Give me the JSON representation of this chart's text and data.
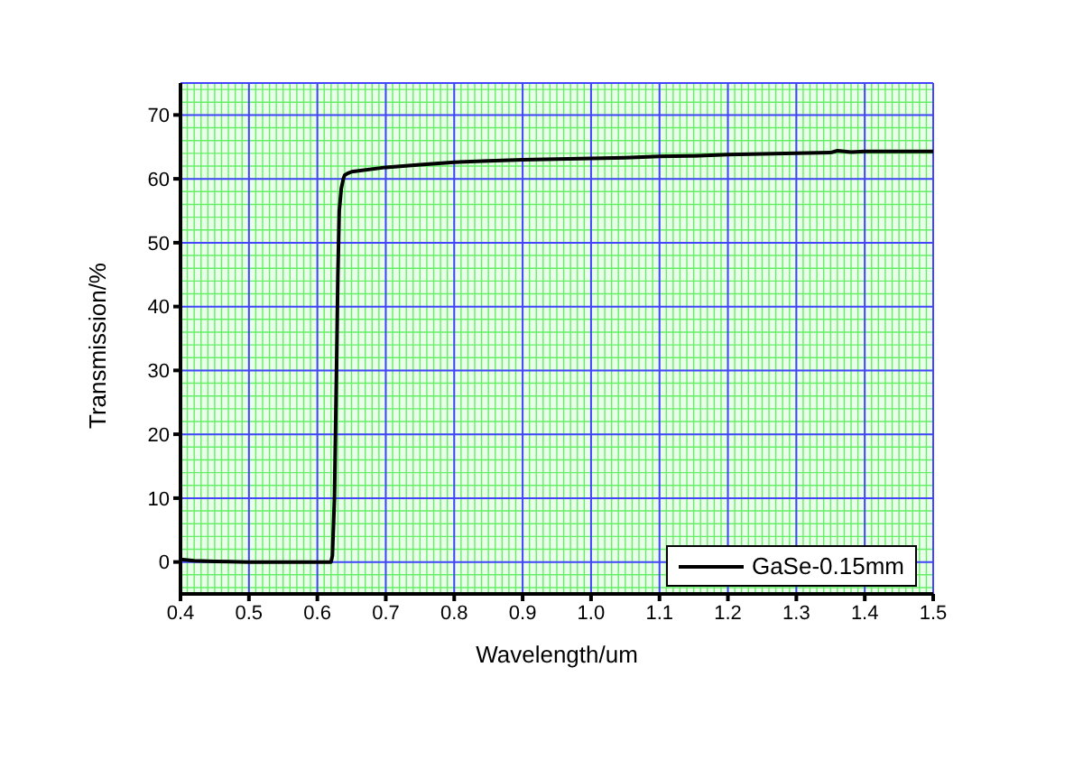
{
  "chart_data": {
    "type": "line",
    "xlabel": "Wavelength/um",
    "ylabel": "Transmission/%",
    "x": [
      0.4,
      0.42,
      0.45,
      0.5,
      0.55,
      0.6,
      0.62,
      0.622,
      0.625,
      0.628,
      0.63,
      0.632,
      0.635,
      0.638,
      0.64,
      0.645,
      0.65,
      0.7,
      0.75,
      0.8,
      0.85,
      0.9,
      0.95,
      1.0,
      1.05,
      1.1,
      1.15,
      1.2,
      1.25,
      1.3,
      1.35,
      1.36,
      1.38,
      1.4,
      1.45,
      1.5
    ],
    "series": [
      {
        "name": "GaSe-0.15mm",
        "color": "#000000",
        "values": [
          0.4,
          0.2,
          0.1,
          0,
          0,
          0,
          0,
          1,
          10,
          30,
          45,
          55,
          58.5,
          60,
          60.6,
          60.9,
          61.1,
          61.8,
          62.2,
          62.6,
          62.8,
          63,
          63.1,
          63.2,
          63.3,
          63.5,
          63.6,
          63.8,
          63.9,
          64,
          64.1,
          64.4,
          64.2,
          64.3,
          64.3,
          64.3
        ]
      }
    ],
    "xlim": [
      0.4,
      1.5
    ],
    "xticks": [
      0.4,
      0.5,
      0.6,
      0.7,
      0.8,
      0.9,
      {
        "value": 1,
        "label": "1.0"
      },
      1.1,
      1.2,
      1.3,
      1.4,
      1.5
    ],
    "ylim": [
      -5,
      75
    ],
    "yticks": [
      0,
      10,
      20,
      30,
      40,
      50,
      60,
      70
    ],
    "grid": true,
    "legend": "bottom right",
    "marker": "none",
    "line_style": "solid"
  }
}
